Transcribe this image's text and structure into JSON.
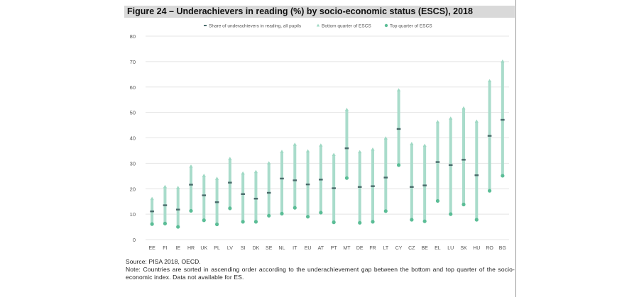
{
  "figure": {
    "title": "Figure 24 – Underachievers in reading (%) by socio-economic status (ESCS), 2018",
    "source": "Source: PISA 2018, OECD.",
    "note": "Note: Countries are sorted in ascending order according to the underachievement gap between the bottom and top quarter of the socio-economic index. Data not available for ES."
  },
  "chart_data": {
    "type": "range",
    "title": "Figure 24 – Underachievers in reading (%) by socio-economic status (ESCS), 2018",
    "xlabel": "",
    "ylabel": "",
    "ylim": [
      0,
      80
    ],
    "yticks": [
      0,
      10,
      20,
      30,
      40,
      50,
      60,
      70,
      80
    ],
    "grid": true,
    "legend_position": "top",
    "categories": [
      "EE",
      "FI",
      "IE",
      "HR",
      "UK",
      "PL",
      "LV",
      "SI",
      "DK",
      "SE",
      "NL",
      "IT",
      "EU",
      "AT",
      "PT",
      "MT",
      "DE",
      "FR",
      "LT",
      "CY",
      "CZ",
      "BE",
      "EL",
      "LU",
      "SK",
      "HU",
      "RO",
      "BG"
    ],
    "series": [
      {
        "name": "Share of underachievers in reading, all pupils",
        "marker": "dash",
        "color": "#4a6b6b",
        "values": [
          11.1,
          13.5,
          11.8,
          21.6,
          17.4,
          14.7,
          22.4,
          17.9,
          16.1,
          18.4,
          24.0,
          23.3,
          21.7,
          23.6,
          20.2,
          35.9,
          20.7,
          21.0,
          24.4,
          43.5,
          20.7,
          21.3,
          30.5,
          29.3,
          31.4,
          25.3,
          40.8,
          47.1
        ]
      },
      {
        "name": "Bottom quarter of ESCS",
        "marker": "triangle",
        "color": "#9fd9c4",
        "values": [
          16.0,
          20.7,
          20.3,
          28.7,
          25.1,
          23.9,
          31.7,
          26.0,
          26.6,
          30.0,
          34.5,
          37.3,
          34.7,
          37.0,
          33.3,
          51.0,
          34.4,
          35.4,
          39.8,
          58.7,
          37.6,
          36.9,
          46.2,
          47.6,
          51.6,
          46.4,
          62.3,
          70.0
        ]
      },
      {
        "name": "Top quarter of ESCS",
        "marker": "circle",
        "color": "#5bbd96",
        "values": [
          6.1,
          6.3,
          5.0,
          11.3,
          7.6,
          6.0,
          12.3,
          7.0,
          7.0,
          9.4,
          10.2,
          12.5,
          9.0,
          10.6,
          6.8,
          24.2,
          6.6,
          7.0,
          11.2,
          29.3,
          7.8,
          7.2,
          15.2,
          10.0,
          13.8,
          7.8,
          19.2,
          25.1
        ]
      }
    ],
    "colors": {
      "range_bar": "#a9dccb",
      "grid": "#e4e4e4",
      "axis_text": "#555555"
    }
  }
}
